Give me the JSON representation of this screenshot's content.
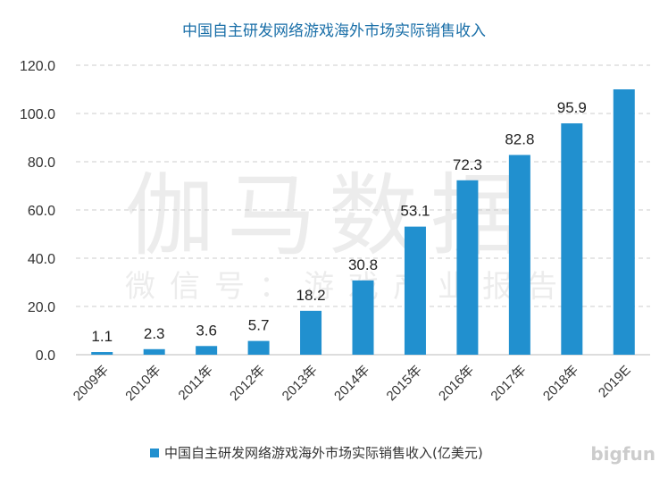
{
  "chart_data": {
    "type": "bar",
    "title": "中国自主研发网络游戏海外市场实际销售收入",
    "categories": [
      "2009年",
      "2010年",
      "2011年",
      "2012年",
      "2013年",
      "2014年",
      "2015年",
      "2016年",
      "2017年",
      "2018年",
      "2019E"
    ],
    "series": [
      {
        "name": "中国自主研发网络游戏海外市场实际销售收入(亿美元)",
        "values": [
          1.1,
          2.3,
          3.6,
          5.7,
          18.2,
          30.8,
          53.1,
          72.3,
          82.8,
          95.9,
          110
        ],
        "data_labels": [
          "1.1",
          "2.3",
          "3.6",
          "5.7",
          "18.2",
          "30.8",
          "53.1",
          "72.3",
          "82.8",
          "95.9",
          ""
        ]
      }
    ],
    "ylim": [
      0,
      120
    ],
    "yticks": [
      "0.0",
      "20.0",
      "40.0",
      "60.0",
      "80.0",
      "100.0",
      "120.0"
    ],
    "grid": true,
    "legend": "bottom",
    "color": "#2190cf"
  },
  "watermark": {
    "main": "伽马数据",
    "sub": "微信号：游戏产业报告",
    "logo": "bigfun"
  }
}
